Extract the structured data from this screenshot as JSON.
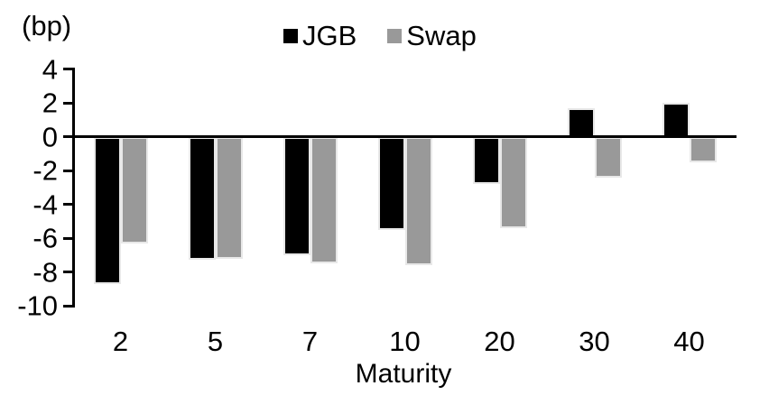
{
  "labels": {
    "unit": "(bp)",
    "x_axis_title": "Maturity"
  },
  "chart_data": {
    "type": "bar",
    "title": "",
    "xlabel": "Maturity",
    "ylabel": "(bp)",
    "categories": [
      "2",
      "5",
      "7",
      "10",
      "20",
      "30",
      "40"
    ],
    "series": [
      {
        "name": "JGB",
        "color": "#000000",
        "values": [
          -8.7,
          -7.3,
          -7.0,
          -5.5,
          -2.8,
          1.7,
          2.0
        ]
      },
      {
        "name": "Swap",
        "color": "#999999",
        "values": [
          -6.3,
          -7.2,
          -7.5,
          -7.6,
          -5.4,
          -2.4,
          -1.5
        ]
      }
    ],
    "ylim": [
      -10,
      4
    ],
    "yticks": [
      4,
      2,
      0,
      -2,
      -4,
      -6,
      -8,
      -10
    ],
    "grid": false,
    "legend_position": "top-center",
    "bar_border_color": "#e8e8e8",
    "axis_color": "#000000"
  }
}
